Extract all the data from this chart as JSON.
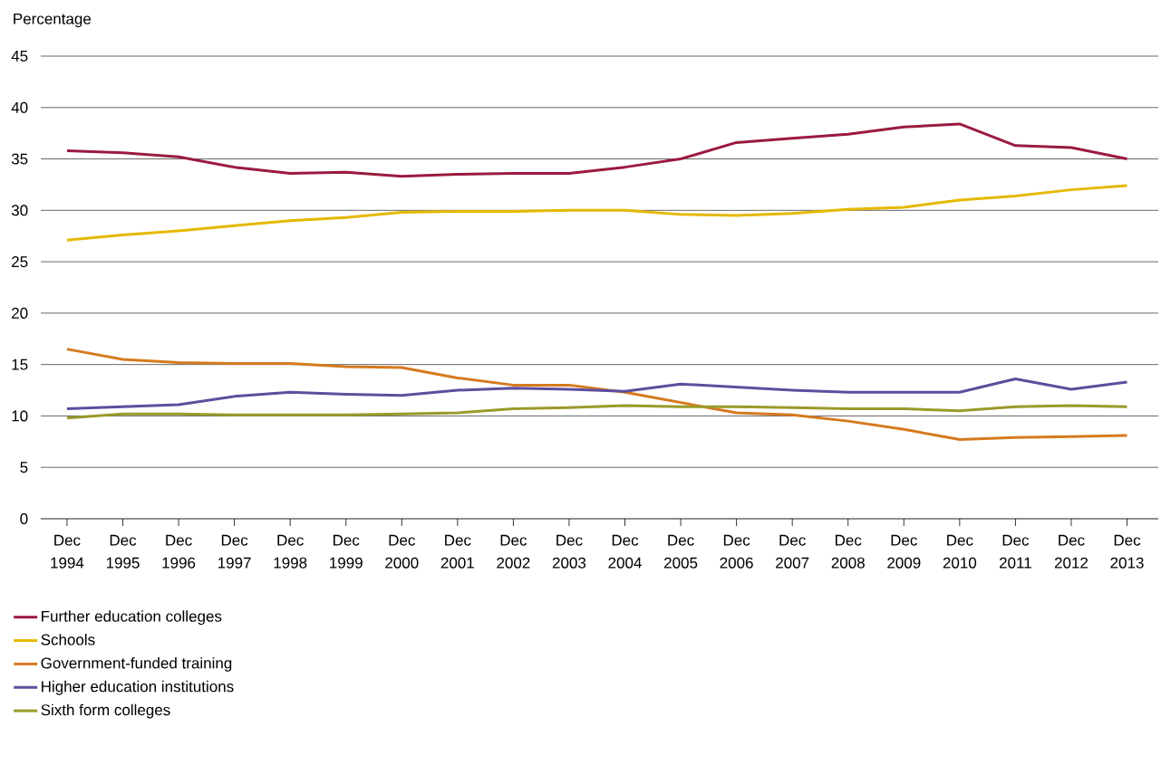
{
  "chart_data": {
    "type": "line",
    "ylabel": "Percentage",
    "categories": [
      "Dec 1994",
      "Dec 1995",
      "Dec 1996",
      "Dec 1997",
      "Dec 1998",
      "Dec 1999",
      "Dec 2000",
      "Dec 2001",
      "Dec 2002",
      "Dec 2003",
      "Dec 2004",
      "Dec 2005",
      "Dec 2006",
      "Dec 2007",
      "Dec 2008",
      "Dec 2009",
      "Dec 2010",
      "Dec 2011",
      "Dec 2012",
      "Dec 2013"
    ],
    "series": [
      {
        "name": "Further education colleges",
        "color": "#9b1b3f",
        "values": [
          35.8,
          35.6,
          35.2,
          34.2,
          33.6,
          33.7,
          33.3,
          33.5,
          33.6,
          33.6,
          34.2,
          35.0,
          36.6,
          37.0,
          37.4,
          38.1,
          38.4,
          36.3,
          36.1,
          35.0
        ]
      },
      {
        "name": "Schools",
        "color": "#e6b800",
        "values": [
          27.1,
          27.6,
          28.0,
          28.5,
          29.0,
          29.3,
          29.8,
          29.9,
          29.9,
          30.0,
          30.0,
          29.6,
          29.5,
          29.7,
          30.1,
          30.3,
          31.0,
          31.4,
          32.0,
          32.4
        ]
      },
      {
        "name": "Government-funded training",
        "color": "#d67a1e",
        "values": [
          16.5,
          15.5,
          15.2,
          15.1,
          15.1,
          14.8,
          14.7,
          13.7,
          13.0,
          13.0,
          12.3,
          11.3,
          10.3,
          10.1,
          9.5,
          8.7,
          7.7,
          7.9,
          8.0,
          8.1
        ]
      },
      {
        "name": "Higher education institutions",
        "color": "#5b4f9e",
        "values": [
          10.7,
          10.9,
          11.1,
          11.9,
          12.3,
          12.1,
          12.0,
          12.5,
          12.7,
          12.6,
          12.4,
          13.1,
          12.8,
          12.5,
          12.3,
          12.3,
          12.3,
          13.6,
          12.6,
          13.3
        ]
      },
      {
        "name": "Sixth form colleges",
        "color": "#9a9a2a",
        "values": [
          9.8,
          10.2,
          10.2,
          10.1,
          10.1,
          10.1,
          10.2,
          10.3,
          10.7,
          10.8,
          11.0,
          10.9,
          10.9,
          10.8,
          10.7,
          10.7,
          10.5,
          10.9,
          11.0,
          10.9
        ]
      }
    ],
    "ylim": [
      0,
      45
    ],
    "yticks": [
      0,
      5,
      10,
      15,
      20,
      25,
      30,
      35,
      40,
      45
    ],
    "grid": "y",
    "legend": "bottom",
    "marker": "none",
    "line_style": "solid"
  }
}
